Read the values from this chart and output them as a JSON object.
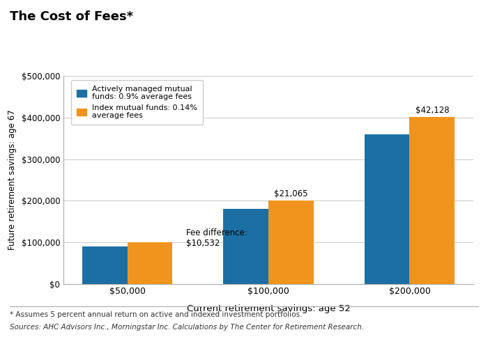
{
  "title": "The Cost of Fees*",
  "xlabel": "Current retirement savings: age 52",
  "ylabel": "Future retirement savings: age 67",
  "categories": [
    "$50,000",
    "$100,000",
    "$200,000"
  ],
  "active_values": [
    89596,
    180131,
    360262
  ],
  "index_values": [
    100128,
    201196,
    402390
  ],
  "active_color": "#1c6fa3",
  "index_color": "#f0941e",
  "ylim": [
    0,
    500000
  ],
  "yticks": [
    0,
    100000,
    200000,
    300000,
    400000,
    500000
  ],
  "ytick_labels": [
    "$0",
    "$100,000",
    "$200,000",
    "$300,000",
    "$400,000",
    "$500,000"
  ],
  "legend_active": "Actively managed mutual\nfunds: 0.9% average fees",
  "legend_index": "Index mutual funds: 0.14%\naverage fees",
  "fee_diff_label": "Fee difference:\n$10,532",
  "index_annotations": [
    "",
    "$21,065",
    "$42,128"
  ],
  "footnote1": "* Assumes 5 percent annual return on active and indexed investment portfolios.",
  "footnote2": "Sources: AHC Advisors Inc., Morningstar Inc. Calculations by The Center for Retirement Research.",
  "bar_width": 0.32,
  "background_color": "#ffffff",
  "plot_bg_color": "#ffffff",
  "outer_bg_color": "#e8e8e8"
}
